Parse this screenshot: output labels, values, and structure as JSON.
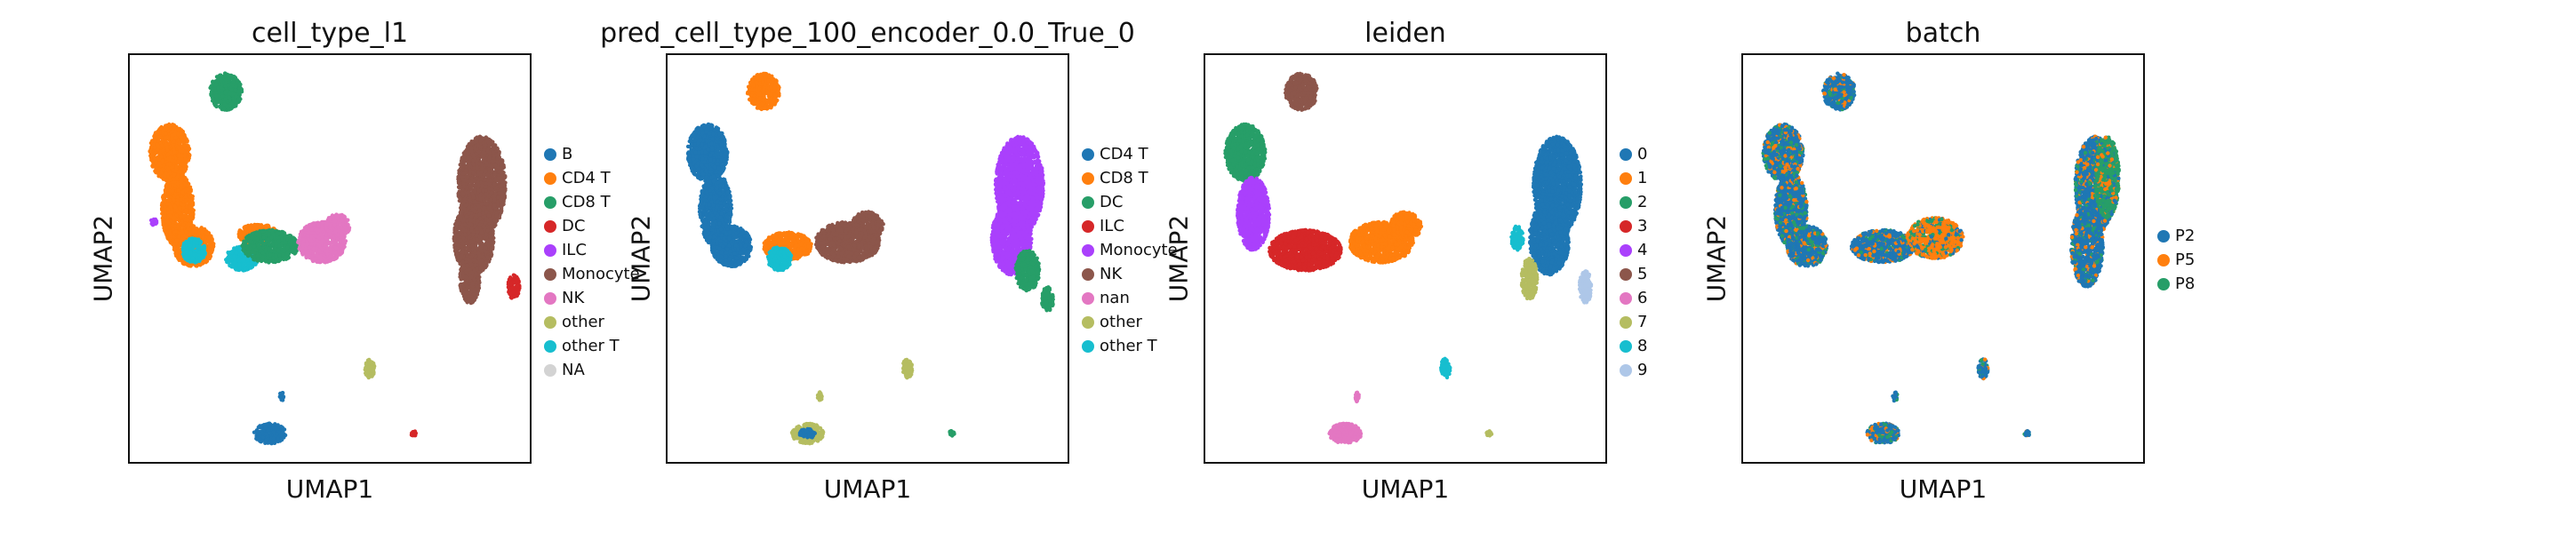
{
  "chart_data": [
    {
      "type": "scatter",
      "title": "cell_type_l1",
      "xlabel": "UMAP1",
      "ylabel": "UMAP2",
      "grid": false,
      "legend_position": "right",
      "legend": [
        {
          "label": "B",
          "color": "#1f77b4"
        },
        {
          "label": "CD4 T",
          "color": "#ff7f0e"
        },
        {
          "label": "CD8 T",
          "color": "#279e68"
        },
        {
          "label": "DC",
          "color": "#d62728"
        },
        {
          "label": "ILC",
          "color": "#aa40fc"
        },
        {
          "label": "Monocyte",
          "color": "#8c564b"
        },
        {
          "label": "NK",
          "color": "#e377c2"
        },
        {
          "label": "other",
          "color": "#b5bd61"
        },
        {
          "label": "other T",
          "color": "#17becf"
        },
        {
          "label": "NA",
          "color": "#d3d3d3"
        }
      ],
      "clusters": [
        {
          "cat": "CD8 T",
          "cx": 0.24,
          "cy": 0.09,
          "rx": 0.04,
          "ry": 0.045
        },
        {
          "cat": "CD4 T",
          "cx": 0.1,
          "cy": 0.24,
          "rx": 0.05,
          "ry": 0.07
        },
        {
          "cat": "CD4 T",
          "cx": 0.12,
          "cy": 0.38,
          "rx": 0.04,
          "ry": 0.09
        },
        {
          "cat": "CD4 T",
          "cx": 0.16,
          "cy": 0.47,
          "rx": 0.05,
          "ry": 0.05
        },
        {
          "cat": "other T",
          "cx": 0.16,
          "cy": 0.48,
          "rx": 0.03,
          "ry": 0.03
        },
        {
          "cat": "CD4 T",
          "cx": 0.32,
          "cy": 0.44,
          "rx": 0.05,
          "ry": 0.025
        },
        {
          "cat": "other T",
          "cx": 0.28,
          "cy": 0.5,
          "rx": 0.04,
          "ry": 0.03
        },
        {
          "cat": "CD8 T",
          "cx": 0.35,
          "cy": 0.47,
          "rx": 0.07,
          "ry": 0.04
        },
        {
          "cat": "NK",
          "cx": 0.48,
          "cy": 0.46,
          "rx": 0.06,
          "ry": 0.05
        },
        {
          "cat": "NK",
          "cx": 0.52,
          "cy": 0.42,
          "rx": 0.03,
          "ry": 0.03
        },
        {
          "cat": "ILC",
          "cx": 0.06,
          "cy": 0.41,
          "rx": 0.008,
          "ry": 0.008
        },
        {
          "cat": "Monocyte",
          "cx": 0.88,
          "cy": 0.32,
          "rx": 0.06,
          "ry": 0.12
        },
        {
          "cat": "Monocyte",
          "cx": 0.86,
          "cy": 0.45,
          "rx": 0.05,
          "ry": 0.09
        },
        {
          "cat": "Monocyte",
          "cx": 0.85,
          "cy": 0.55,
          "rx": 0.025,
          "ry": 0.06
        },
        {
          "cat": "DC",
          "cx": 0.96,
          "cy": 0.57,
          "rx": 0.015,
          "ry": 0.03
        },
        {
          "cat": "other",
          "cx": 0.6,
          "cy": 0.77,
          "rx": 0.012,
          "ry": 0.025
        },
        {
          "cat": "B",
          "cx": 0.35,
          "cy": 0.93,
          "rx": 0.04,
          "ry": 0.025
        },
        {
          "cat": "B",
          "cx": 0.38,
          "cy": 0.84,
          "rx": 0.006,
          "ry": 0.012
        },
        {
          "cat": "DC",
          "cx": 0.71,
          "cy": 0.93,
          "rx": 0.007,
          "ry": 0.006
        }
      ]
    },
    {
      "type": "scatter",
      "title": "pred_cell_type_100_encoder_0.0_True_0",
      "xlabel": "UMAP1",
      "ylabel": "UMAP2",
      "grid": false,
      "legend_position": "right",
      "legend": [
        {
          "label": "CD4 T",
          "color": "#1f77b4"
        },
        {
          "label": "CD8 T",
          "color": "#ff7f0e"
        },
        {
          "label": "DC",
          "color": "#279e68"
        },
        {
          "label": "ILC",
          "color": "#d62728"
        },
        {
          "label": "Monocyte",
          "color": "#aa40fc"
        },
        {
          "label": "NK",
          "color": "#8c564b"
        },
        {
          "label": "nan",
          "color": "#e377c2"
        },
        {
          "label": "other",
          "color": "#b5bd61"
        },
        {
          "label": "other T",
          "color": "#17becf"
        }
      ],
      "clusters": [
        {
          "cat": "CD8 T",
          "cx": 0.24,
          "cy": 0.09,
          "rx": 0.04,
          "ry": 0.045
        },
        {
          "cat": "CD4 T",
          "cx": 0.1,
          "cy": 0.24,
          "rx": 0.05,
          "ry": 0.07
        },
        {
          "cat": "CD4 T",
          "cx": 0.12,
          "cy": 0.38,
          "rx": 0.04,
          "ry": 0.09
        },
        {
          "cat": "CD4 T",
          "cx": 0.16,
          "cy": 0.47,
          "rx": 0.05,
          "ry": 0.05
        },
        {
          "cat": "CD8 T",
          "cx": 0.3,
          "cy": 0.47,
          "rx": 0.06,
          "ry": 0.035
        },
        {
          "cat": "other T",
          "cx": 0.28,
          "cy": 0.5,
          "rx": 0.03,
          "ry": 0.03
        },
        {
          "cat": "NK",
          "cx": 0.45,
          "cy": 0.46,
          "rx": 0.08,
          "ry": 0.05
        },
        {
          "cat": "NK",
          "cx": 0.5,
          "cy": 0.42,
          "rx": 0.04,
          "ry": 0.035
        },
        {
          "cat": "Monocyte",
          "cx": 0.88,
          "cy": 0.32,
          "rx": 0.06,
          "ry": 0.12
        },
        {
          "cat": "Monocyte",
          "cx": 0.86,
          "cy": 0.45,
          "rx": 0.05,
          "ry": 0.09
        },
        {
          "cat": "DC",
          "cx": 0.9,
          "cy": 0.53,
          "rx": 0.03,
          "ry": 0.05
        },
        {
          "cat": "DC",
          "cx": 0.95,
          "cy": 0.6,
          "rx": 0.015,
          "ry": 0.03
        },
        {
          "cat": "other",
          "cx": 0.6,
          "cy": 0.77,
          "rx": 0.012,
          "ry": 0.025
        },
        {
          "cat": "other",
          "cx": 0.35,
          "cy": 0.93,
          "rx": 0.04,
          "ry": 0.025
        },
        {
          "cat": "CD4 T",
          "cx": 0.35,
          "cy": 0.93,
          "rx": 0.02,
          "ry": 0.012
        },
        {
          "cat": "other",
          "cx": 0.38,
          "cy": 0.84,
          "rx": 0.006,
          "ry": 0.012
        },
        {
          "cat": "DC",
          "cx": 0.71,
          "cy": 0.93,
          "rx": 0.007,
          "ry": 0.006
        }
      ]
    },
    {
      "type": "scatter",
      "title": "leiden",
      "xlabel": "UMAP1",
      "ylabel": "UMAP2",
      "grid": false,
      "legend_position": "right",
      "legend": [
        {
          "label": "0",
          "color": "#1f77b4"
        },
        {
          "label": "1",
          "color": "#ff7f0e"
        },
        {
          "label": "2",
          "color": "#279e68"
        },
        {
          "label": "3",
          "color": "#d62728"
        },
        {
          "label": "4",
          "color": "#aa40fc"
        },
        {
          "label": "5",
          "color": "#8c564b"
        },
        {
          "label": "6",
          "color": "#e377c2"
        },
        {
          "label": "7",
          "color": "#b5bd61"
        },
        {
          "label": "8",
          "color": "#17becf"
        },
        {
          "label": "9",
          "color": "#aec7e8"
        }
      ],
      "clusters": [
        {
          "cat": "5",
          "cx": 0.24,
          "cy": 0.09,
          "rx": 0.04,
          "ry": 0.045
        },
        {
          "cat": "2",
          "cx": 0.1,
          "cy": 0.24,
          "rx": 0.05,
          "ry": 0.07
        },
        {
          "cat": "4",
          "cx": 0.12,
          "cy": 0.39,
          "rx": 0.04,
          "ry": 0.09
        },
        {
          "cat": "3",
          "cx": 0.25,
          "cy": 0.48,
          "rx": 0.09,
          "ry": 0.05
        },
        {
          "cat": "1",
          "cx": 0.44,
          "cy": 0.46,
          "rx": 0.08,
          "ry": 0.05
        },
        {
          "cat": "1",
          "cx": 0.5,
          "cy": 0.42,
          "rx": 0.04,
          "ry": 0.035
        },
        {
          "cat": "0",
          "cx": 0.88,
          "cy": 0.32,
          "rx": 0.06,
          "ry": 0.12
        },
        {
          "cat": "0",
          "cx": 0.86,
          "cy": 0.45,
          "rx": 0.05,
          "ry": 0.09
        },
        {
          "cat": "8",
          "cx": 0.78,
          "cy": 0.45,
          "rx": 0.015,
          "ry": 0.03
        },
        {
          "cat": "7",
          "cx": 0.81,
          "cy": 0.55,
          "rx": 0.02,
          "ry": 0.05
        },
        {
          "cat": "9",
          "cx": 0.95,
          "cy": 0.57,
          "rx": 0.015,
          "ry": 0.04
        },
        {
          "cat": "8",
          "cx": 0.6,
          "cy": 0.77,
          "rx": 0.012,
          "ry": 0.025
        },
        {
          "cat": "6",
          "cx": 0.35,
          "cy": 0.93,
          "rx": 0.04,
          "ry": 0.025
        },
        {
          "cat": "6",
          "cx": 0.38,
          "cy": 0.84,
          "rx": 0.006,
          "ry": 0.012
        },
        {
          "cat": "7",
          "cx": 0.71,
          "cy": 0.93,
          "rx": 0.007,
          "ry": 0.006
        }
      ]
    },
    {
      "type": "scatter",
      "title": "batch",
      "xlabel": "UMAP1",
      "ylabel": "UMAP2",
      "grid": false,
      "legend_position": "right",
      "legend": [
        {
          "label": "P2",
          "color": "#1f77b4"
        },
        {
          "label": "P5",
          "color": "#ff7f0e"
        },
        {
          "label": "P8",
          "color": "#279e68"
        }
      ],
      "mixed": true,
      "clusters": [
        {
          "cat": "P2",
          "cx": 0.24,
          "cy": 0.09,
          "rx": 0.04,
          "ry": 0.045
        },
        {
          "cat": "P2",
          "cx": 0.1,
          "cy": 0.24,
          "rx": 0.05,
          "ry": 0.07
        },
        {
          "cat": "P2",
          "cx": 0.12,
          "cy": 0.38,
          "rx": 0.04,
          "ry": 0.09
        },
        {
          "cat": "P2",
          "cx": 0.16,
          "cy": 0.47,
          "rx": 0.05,
          "ry": 0.05
        },
        {
          "cat": "P2",
          "cx": 0.35,
          "cy": 0.47,
          "rx": 0.08,
          "ry": 0.04
        },
        {
          "cat": "P5",
          "cx": 0.48,
          "cy": 0.45,
          "rx": 0.07,
          "ry": 0.05
        },
        {
          "cat": "P2",
          "cx": 0.88,
          "cy": 0.32,
          "rx": 0.05,
          "ry": 0.12
        },
        {
          "cat": "P8",
          "cx": 0.91,
          "cy": 0.3,
          "rx": 0.03,
          "ry": 0.1
        },
        {
          "cat": "P2",
          "cx": 0.86,
          "cy": 0.47,
          "rx": 0.04,
          "ry": 0.1
        },
        {
          "cat": "P2",
          "cx": 0.6,
          "cy": 0.77,
          "rx": 0.012,
          "ry": 0.025
        },
        {
          "cat": "P2",
          "cx": 0.35,
          "cy": 0.93,
          "rx": 0.04,
          "ry": 0.025
        },
        {
          "cat": "P2",
          "cx": 0.38,
          "cy": 0.84,
          "rx": 0.006,
          "ry": 0.012
        },
        {
          "cat": "P2",
          "cx": 0.71,
          "cy": 0.93,
          "rx": 0.007,
          "ry": 0.006
        }
      ]
    }
  ]
}
